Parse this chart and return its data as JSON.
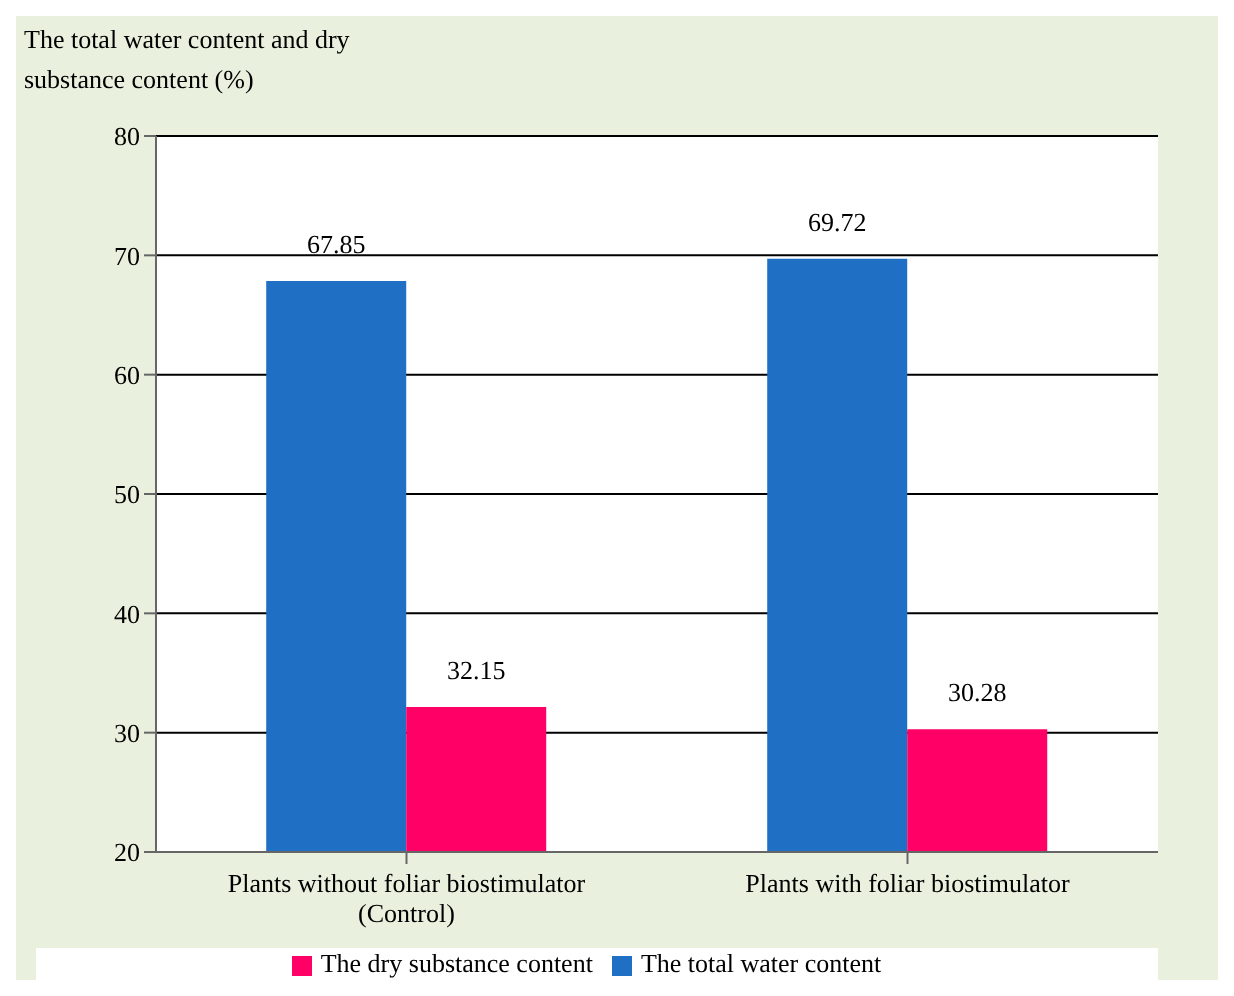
{
  "chart_data": {
    "type": "bar",
    "ylabel": "The total water content and dry substance content (%)",
    "categories": [
      "Plants without foliar biostimulator (Control)",
      "Plants with foliar biostimulator"
    ],
    "series": [
      {
        "name": "The total water content",
        "color": "#1f6fc5",
        "values": [
          67.85,
          69.72
        ]
      },
      {
        "name": "The dry substance content",
        "color": "#ff0066",
        "values": [
          32.15,
          30.28
        ]
      }
    ],
    "ylim": [
      20,
      80
    ],
    "yticks": [
      20,
      30,
      40,
      50,
      60,
      70,
      80
    ],
    "grid": "y",
    "legend": "bottom",
    "data_labels": true
  }
}
